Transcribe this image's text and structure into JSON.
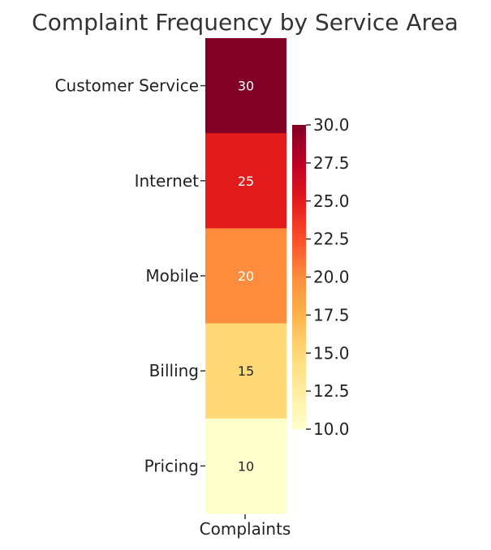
{
  "chart_data": {
    "type": "heatmap",
    "title": "Complaint Frequency by Service Area",
    "rows": [
      "Customer Service",
      "Internet",
      "Mobile",
      "Billing",
      "Pricing"
    ],
    "columns": [
      "Complaints"
    ],
    "values": [
      [
        30
      ],
      [
        25
      ],
      [
        20
      ],
      [
        15
      ],
      [
        10
      ]
    ],
    "cell_labels": [
      "30",
      "25",
      "20",
      "15",
      "10"
    ],
    "colorbar": {
      "range": [
        10.0,
        30.0
      ],
      "ticks": [
        "10.0",
        "12.5",
        "15.0",
        "17.5",
        "20.0",
        "22.5",
        "25.0",
        "27.5",
        "30.0"
      ],
      "colormap": "YlOrRd"
    },
    "colors": {
      "30": "#800026",
      "25": "#e31a1c",
      "20": "#fd8d3c",
      "15": "#fed976",
      "10": "#ffffcc"
    }
  }
}
